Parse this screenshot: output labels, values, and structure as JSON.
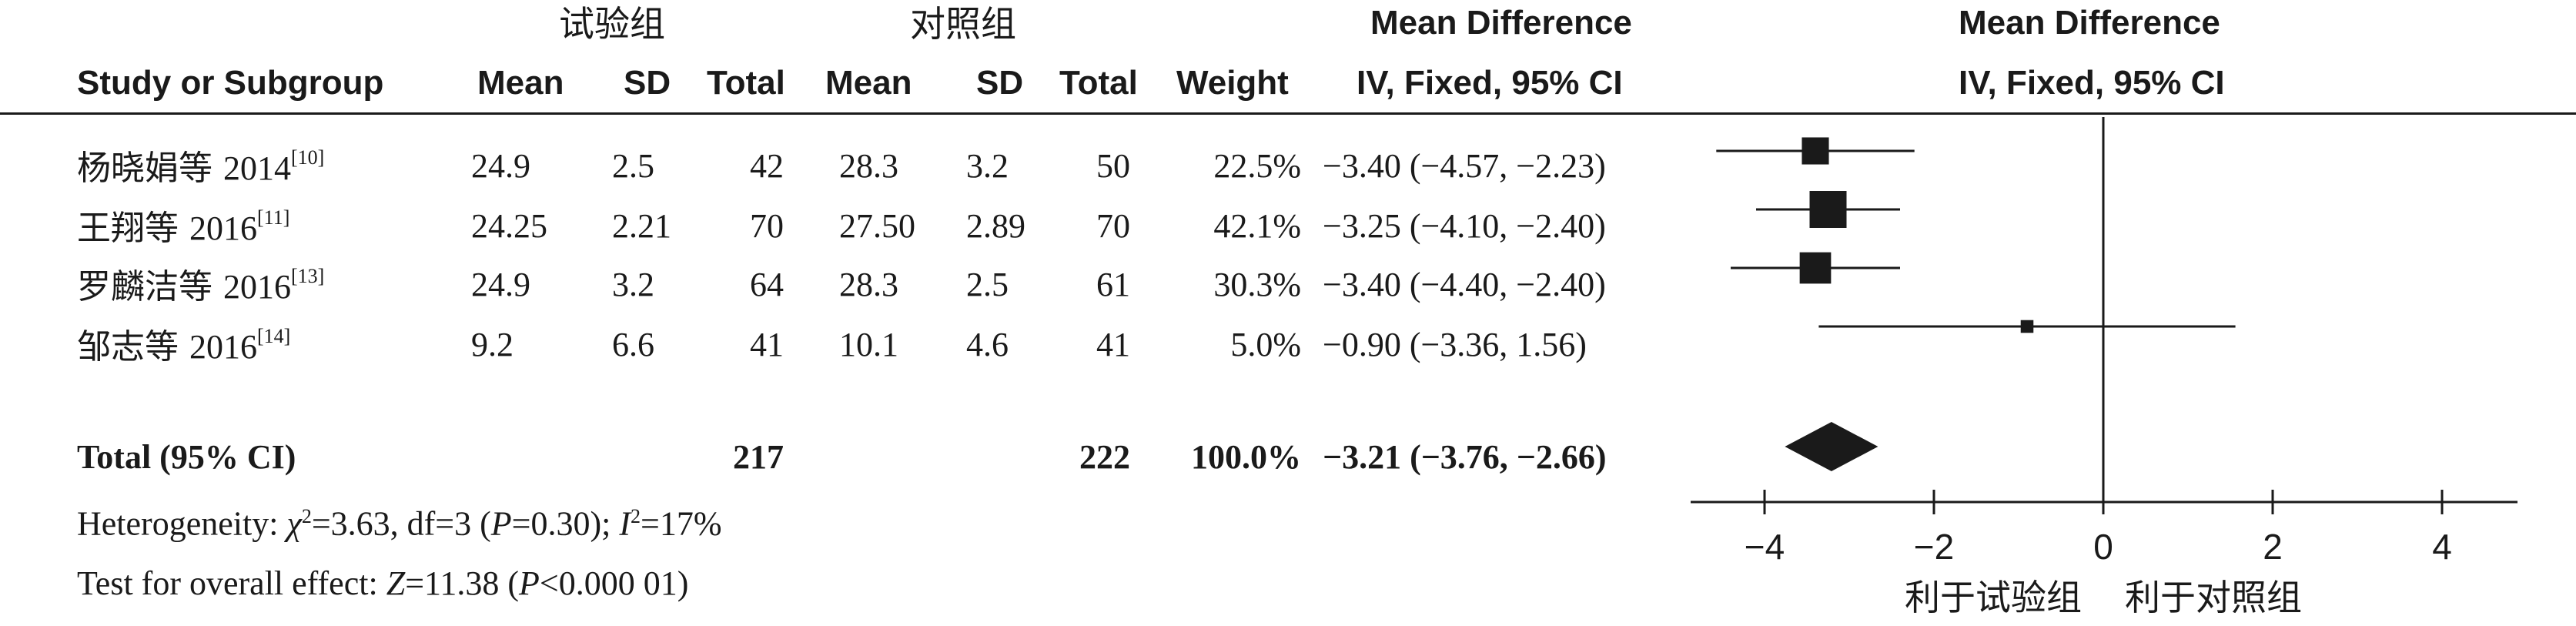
{
  "group_headers": {
    "experimental": "试验组",
    "control": "对照组"
  },
  "columns": {
    "study": "Study or Subgroup",
    "exp_mean": "Mean",
    "exp_sd": "SD",
    "exp_total": "Total",
    "ctl_mean": "Mean",
    "ctl_sd": "SD",
    "ctl_total": "Total",
    "weight": "Weight",
    "md_title": "Mean Difference",
    "md_sub": "IV, Fixed, 95% CI",
    "plot_title": "Mean Difference",
    "plot_sub": "IV, Fixed, 95% CI"
  },
  "studies": [
    {
      "name": "杨晓娟等",
      "year": "2014",
      "ref": "[10]",
      "exp_mean": "24.9",
      "exp_sd": "2.5",
      "exp_total": "42",
      "ctl_mean": "28.3",
      "ctl_sd": "3.2",
      "ctl_total": "50",
      "weight": "22.5%",
      "ci_text": "−3.40 (−4.57, −2.23)"
    },
    {
      "name": "王翔等",
      "year": "2016",
      "ref": "[11]",
      "exp_mean": "24.25",
      "exp_sd": "2.21",
      "exp_total": "70",
      "ctl_mean": "27.50",
      "ctl_sd": "2.89",
      "ctl_total": "70",
      "weight": "42.1%",
      "ci_text": "−3.25 (−4.10, −2.40)"
    },
    {
      "name": "罗麟洁等",
      "year": "2016",
      "ref": "[13]",
      "exp_mean": "24.9",
      "exp_sd": "3.2",
      "exp_total": "64",
      "ctl_mean": "28.3",
      "ctl_sd": "2.5",
      "ctl_total": "61",
      "weight": "30.3%",
      "ci_text": "−3.40 (−4.40, −2.40)"
    },
    {
      "name": "邹志等",
      "year": "2016",
      "ref": "[14]",
      "exp_mean": "9.2",
      "exp_sd": "6.6",
      "exp_total": "41",
      "ctl_mean": "10.1",
      "ctl_sd": "4.6",
      "ctl_total": "41",
      "weight": "5.0%",
      "ci_text": "−0.90 (−3.36, 1.56)"
    }
  ],
  "total": {
    "label": "Total (95% CI)",
    "exp_total": "217",
    "ctl_total": "222",
    "weight": "100.0%",
    "ci_text": "−3.21 (−3.76, −2.66)"
  },
  "footnotes": {
    "het_prefix": "Heterogeneity: ",
    "chi_sym": "χ",
    "chi_rest": "=3.63, df=3 (",
    "p_sym": "P",
    "p_rest": "=0.30); ",
    "i_sym": "I",
    "i_rest": "=17%",
    "overall_prefix": "Test for overall effect: ",
    "z_sym": "Z",
    "z_rest": "=11.38 (",
    "p2_sym": "P",
    "p2_rest": "<0.000 01)"
  },
  "chart_data": {
    "type": "forest",
    "x_ticks": [
      -4,
      -2,
      0,
      2,
      4
    ],
    "x_tick_labels": [
      "−4",
      "−2",
      "0",
      "2",
      "4"
    ],
    "xlim": [
      -5,
      5
    ],
    "favours_left": "利于试验组",
    "favours_right": "利于对照组",
    "studies": [
      {
        "md": -3.4,
        "lower": -4.57,
        "upper": -2.23,
        "weight": 22.5
      },
      {
        "md": -3.25,
        "lower": -4.1,
        "upper": -2.4,
        "weight": 42.1
      },
      {
        "md": -3.4,
        "lower": -4.4,
        "upper": -2.4,
        "weight": 30.3
      },
      {
        "md": -0.9,
        "lower": -3.36,
        "upper": 1.56,
        "weight": 5.0
      }
    ],
    "pooled": {
      "md": -3.21,
      "lower": -3.76,
      "upper": -2.66
    }
  }
}
